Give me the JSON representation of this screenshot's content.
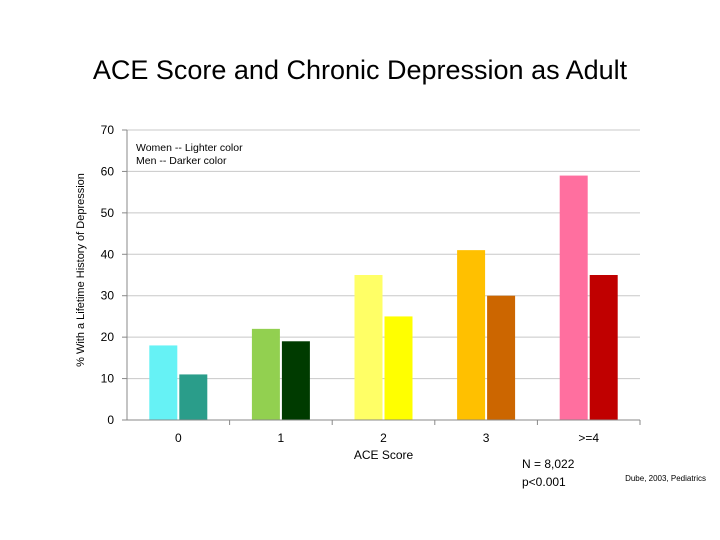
{
  "chart_data": {
    "type": "bar",
    "title": "ACE Score and Chronic Depression as Adult",
    "ylabel": "% With a Lifetime History of Depression",
    "xlabel": "ACE Score",
    "ylim": [
      0,
      70
    ],
    "yticks": [
      0,
      10,
      20,
      30,
      40,
      50,
      60,
      70
    ],
    "grid": true,
    "categories": [
      "0",
      "1",
      "2",
      "3",
      ">=4"
    ],
    "series": [
      {
        "group": "women",
        "values": [
          18,
          22,
          35,
          41,
          59
        ],
        "colors": [
          "#66f2f5",
          "#92d050",
          "#ffff66",
          "#ffc000",
          "#ff6f9f"
        ]
      },
      {
        "group": "men",
        "values": [
          11,
          19,
          25,
          30,
          35
        ],
        "colors": [
          "#2a9d8a",
          "#003b00",
          "#ffff00",
          "#cc6600",
          "#c00000"
        ]
      }
    ],
    "legend_notes": [
      "Women -- Lighter color",
      "Men -- Darker color"
    ],
    "annotations": [
      "N = 8,022",
      "p<0.001"
    ],
    "citation": "Dube, 2003, Pediatrics"
  }
}
